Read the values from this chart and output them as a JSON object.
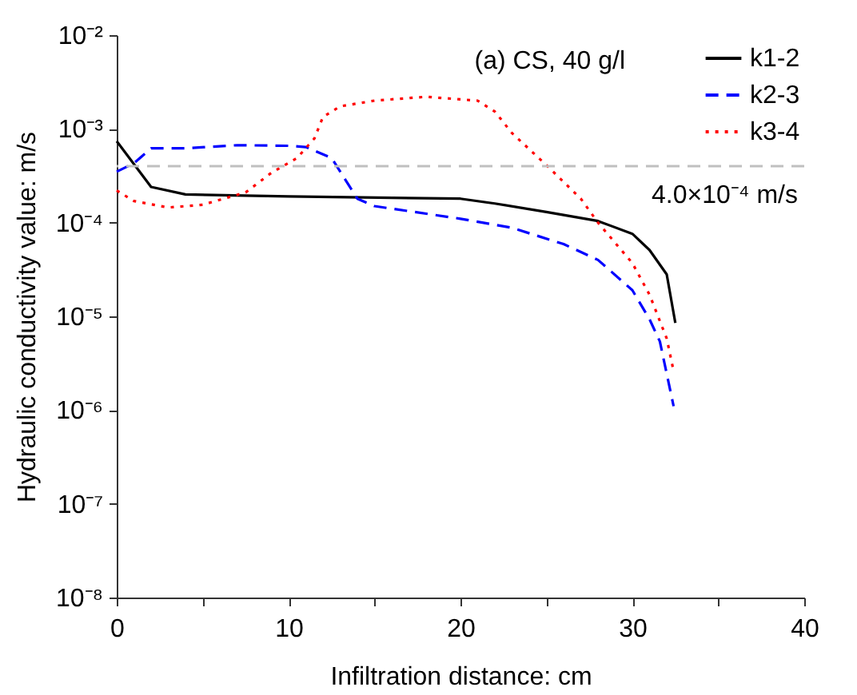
{
  "chart_data": {
    "type": "line",
    "xlabel": "Infiltration distance: cm",
    "ylabel": "Hydraulic conductivity value: m/s",
    "log": "y",
    "xlim": [
      0,
      40
    ],
    "xticks": [
      0,
      {
        "value": 5,
        "label": null
      },
      10,
      {
        "value": 15,
        "label": null
      },
      20,
      {
        "value": 25,
        "label": null
      },
      30,
      {
        "value": 35,
        "label": null
      },
      40
    ],
    "ylim": [
      1e-08,
      0.01
    ],
    "yticks": [
      {
        "value": 1e-08,
        "label": "10⁻⁸"
      },
      {
        "value": 1e-07,
        "label": "10⁻⁷"
      },
      {
        "value": 1e-06,
        "label": "10⁻⁶"
      },
      {
        "value": 1e-05,
        "label": "10⁻⁵"
      },
      {
        "value": 0.0001,
        "label": "10⁻⁴"
      },
      {
        "value": 0.001,
        "label": "10⁻³"
      },
      {
        "value": 0.01,
        "label": "10⁻²"
      }
    ],
    "grid": false,
    "legend": "top right",
    "marker": "none",
    "annotations": [
      "(a) CS, 40 g/l"
    ],
    "ref_lines": [
      {
        "axis": "y",
        "value": 0.0004,
        "label": "4.0×10⁻⁴ m/s",
        "color": "#c0c0c0",
        "line_style": "dashed"
      }
    ],
    "series": [
      {
        "name": "k1-2",
        "color": "#000000",
        "line_style": "solid",
        "x": [
          0,
          2,
          4,
          10,
          20,
          22,
          25,
          28,
          30,
          31,
          32,
          32.5
        ],
        "values": [
          0.00074,
          0.00024,
          0.0002,
          0.00019,
          0.00018,
          0.00016,
          0.00013,
          0.000104,
          7.6e-05,
          5.1e-05,
          2.8e-05,
          8.5e-06
        ]
      },
      {
        "name": "k2-3",
        "color": "#0000ff",
        "line_style": "dashed",
        "x": [
          0,
          1,
          2,
          4,
          7,
          10,
          11,
          12.5,
          14,
          15,
          20,
          23,
          26,
          28,
          30,
          31,
          31.6,
          32.4
        ],
        "values": [
          0.00035,
          0.00043,
          0.00062,
          0.00062,
          0.00067,
          0.00066,
          0.00064,
          0.00049,
          0.00018,
          0.00015,
          0.00011,
          8.8e-05,
          5.9e-05,
          4e-05,
          1.9e-05,
          9.3e-06,
          5.4e-06,
          1.1e-06
        ]
      },
      {
        "name": "k3-4",
        "color": "#ff0000",
        "line_style": "dotted",
        "x": [
          0,
          1,
          3,
          5,
          7.5,
          9,
          10.5,
          11.5,
          12,
          13,
          15,
          18,
          21,
          22,
          23,
          25,
          27,
          28,
          30,
          31,
          32,
          32.4
        ],
        "values": [
          0.00022,
          0.00017,
          0.000145,
          0.000155,
          0.00021,
          0.00034,
          0.00049,
          0.00079,
          0.00134,
          0.00174,
          0.002,
          0.0022,
          0.002,
          0.00153,
          0.0009,
          0.00041,
          0.00018,
          0.0001,
          3.7e-05,
          1.7e-05,
          5.8e-06,
          2.6e-06
        ]
      }
    ]
  }
}
